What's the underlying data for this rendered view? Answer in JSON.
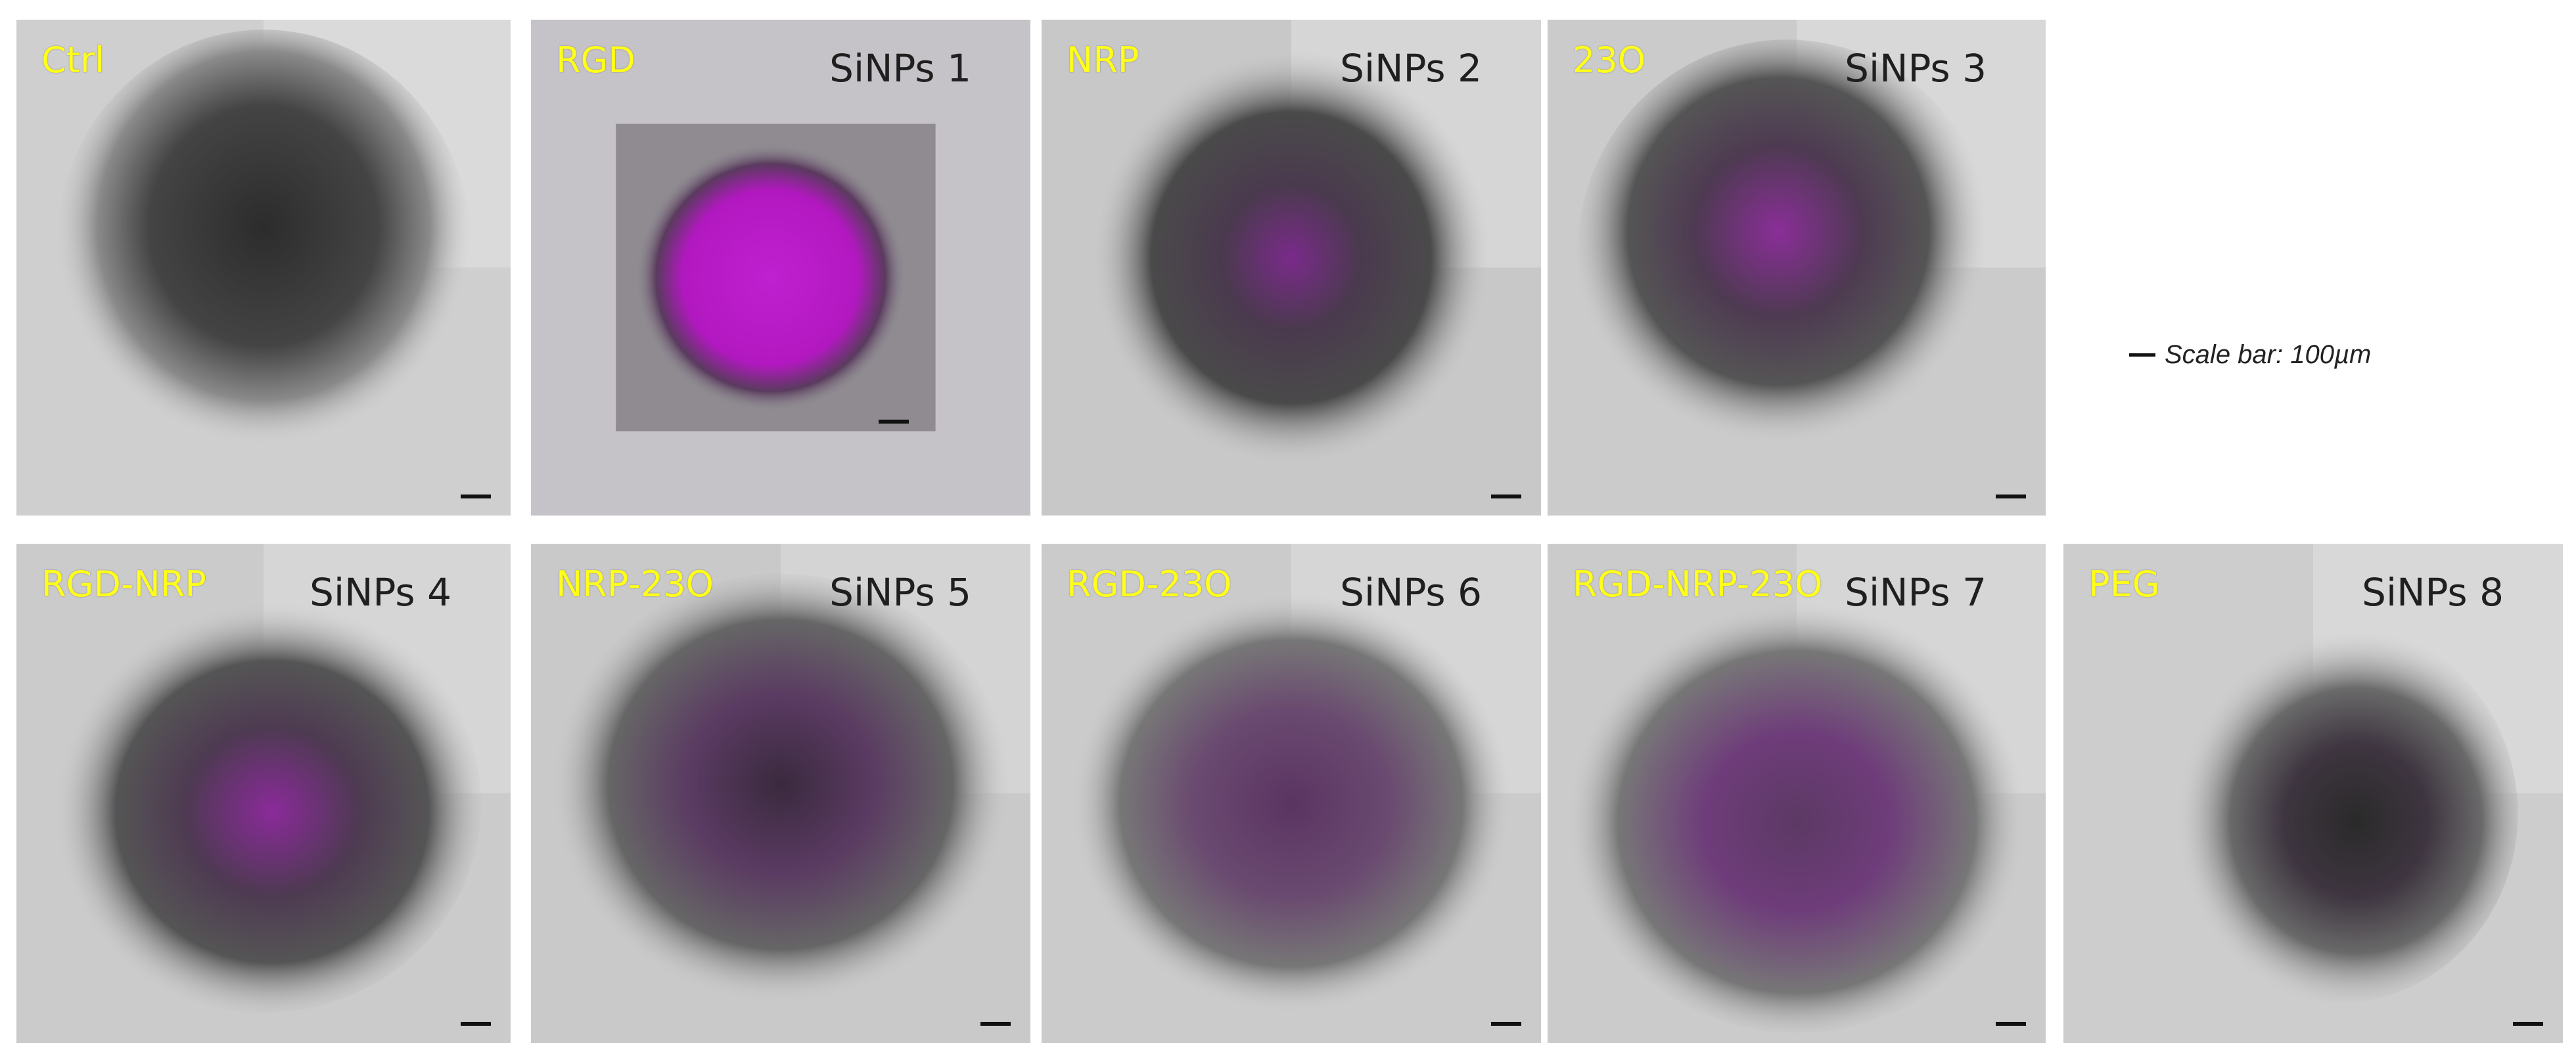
{
  "panels": [
    {
      "label": "Ctrl",
      "nanoparticle": ""
    },
    {
      "label": "RGD",
      "nanoparticle": "SiNPs 1"
    },
    {
      "label": "NRP",
      "nanoparticle": "SiNPs 2"
    },
    {
      "label": "23O",
      "nanoparticle": "SiNPs 3"
    },
    {
      "label": "RGD-NRP",
      "nanoparticle": "SiNPs 4"
    },
    {
      "label": "NRP-23O",
      "nanoparticle": "SiNPs 5"
    },
    {
      "label": "RGD-23O",
      "nanoparticle": "SiNPs 6"
    },
    {
      "label": "RGD-NRP-23O",
      "nanoparticle": "SiNPs 7"
    },
    {
      "label": "PEG",
      "nanoparticle": "SiNPs 8"
    }
  ],
  "scale_legend": "Scale bar: 100µm",
  "colors": {
    "label": "#ffff1a",
    "fluorescence": "#c020d0",
    "spheroid": "#3a3a3a"
  }
}
